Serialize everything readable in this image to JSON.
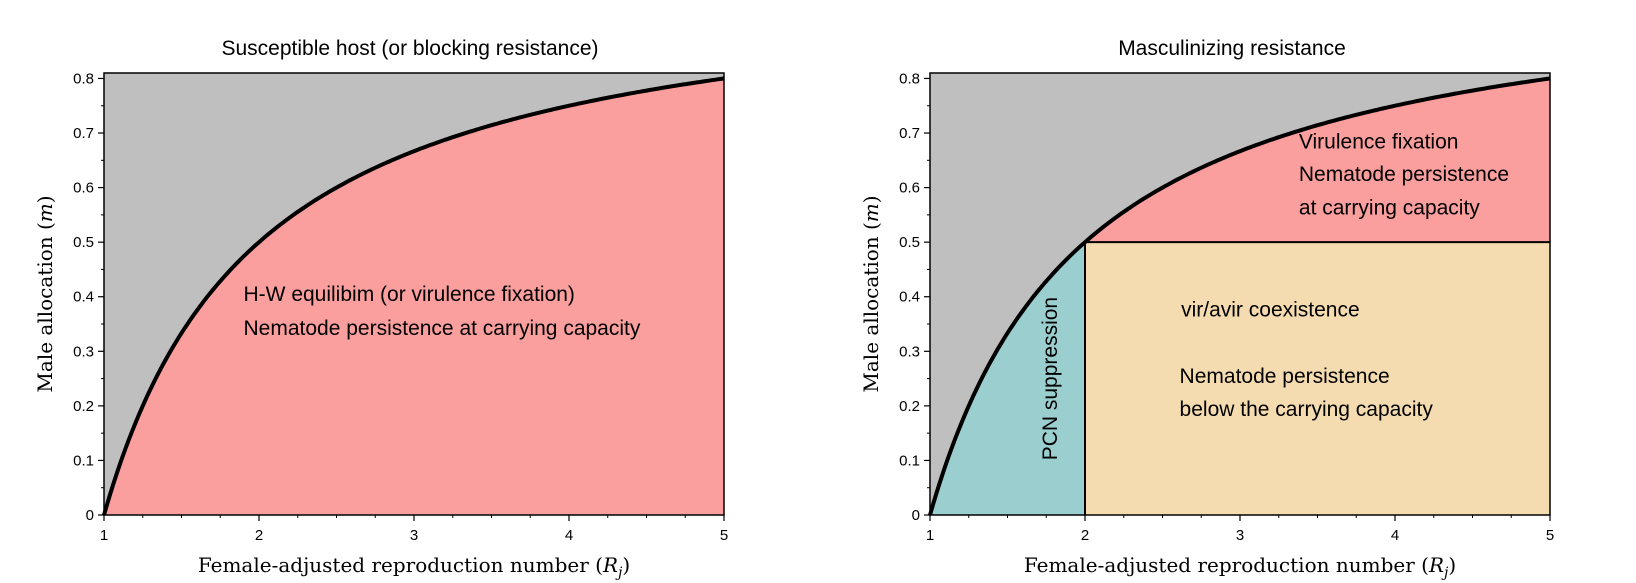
{
  "chart_data": [
    {
      "type": "area",
      "title": "Susceptible host (or blocking resistance)",
      "xlabel_text": "Female-adjusted reproduction number (",
      "xlabel_sym": "R",
      "xlabel_sub": "j",
      "xlabel_close": ")",
      "ylabel_text": "Male allocation (",
      "ylabel_sym": "m",
      "ylabel_close": ")",
      "xlim": [
        1,
        5
      ],
      "ylim": [
        0,
        0.81
      ],
      "xticks": [
        1,
        2,
        3,
        4,
        5
      ],
      "yticks": [
        0,
        0.1,
        0.2,
        0.3,
        0.4,
        0.5,
        0.6,
        0.7,
        0.8
      ],
      "ytick_labels": [
        "0",
        "0.1",
        "0.2",
        "0.3",
        "0.4",
        "0.5",
        "0.6",
        "0.7",
        "0.8"
      ],
      "boundary_curve": {
        "x": [
          1,
          1.25,
          1.5,
          1.75,
          2,
          2.5,
          3,
          3.5,
          4,
          4.5,
          5
        ],
        "y": [
          0,
          0.2,
          0.333,
          0.429,
          0.5,
          0.6,
          0.667,
          0.714,
          0.75,
          0.778,
          0.8
        ]
      },
      "regions": [
        {
          "name": "above-curve",
          "color": "#bfbfbf"
        },
        {
          "name": "below-curve",
          "color": "#fa9e9e"
        }
      ],
      "annotations": [
        {
          "lines": [
            "H-W equilibim (or virulence fixation)",
            "Nematode persistence at carrying capacity"
          ],
          "x": 1.9,
          "y": [
            0.392,
            0.33
          ]
        }
      ],
      "grid": false
    },
    {
      "type": "area",
      "title": "Masculinizing resistance",
      "xlabel_text": "Female-adjusted reproduction number (",
      "xlabel_sym": "R",
      "xlabel_sub": "j",
      "xlabel_close": ")",
      "ylabel_text": "Male allocation (",
      "ylabel_sym": "m",
      "ylabel_close": ")",
      "xlim": [
        1,
        5
      ],
      "ylim": [
        0,
        0.81
      ],
      "xticks": [
        1,
        2,
        3,
        4,
        5
      ],
      "yticks": [
        0,
        0.1,
        0.2,
        0.3,
        0.4,
        0.5,
        0.6,
        0.7,
        0.8
      ],
      "ytick_labels": [
        "0",
        "0.1",
        "0.2",
        "0.3",
        "0.4",
        "0.5",
        "0.6",
        "0.7",
        "0.8"
      ],
      "boundary_curve": {
        "x": [
          1,
          1.25,
          1.5,
          1.75,
          2,
          2.5,
          3,
          3.5,
          4,
          4.5,
          5
        ],
        "y": [
          0,
          0.2,
          0.333,
          0.429,
          0.5,
          0.6,
          0.667,
          0.714,
          0.75,
          0.778,
          0.8
        ]
      },
      "threshold_x": 2,
      "threshold_y": 0.5,
      "regions": [
        {
          "name": "above-curve",
          "color": "#bfbfbf"
        },
        {
          "name": "virulence-fixation",
          "color": "#fa9e9e"
        },
        {
          "name": "coexistence",
          "color": "#f5dcb0"
        },
        {
          "name": "pcn-suppression",
          "color": "#9bcfcf"
        }
      ],
      "annotations": [
        {
          "lines": [
            "Virulence fixation",
            "Nematode persistence",
            "at carrying capacity"
          ],
          "x": 3.38,
          "y": [
            0.672,
            0.612,
            0.551
          ]
        },
        {
          "lines": [
            "vir/avir coexistence"
          ],
          "x": 2.62,
          "y": [
            0.364
          ]
        },
        {
          "lines": [
            "Nematode persistence",
            "below the carrying capacity"
          ],
          "x": 2.61,
          "y": [
            0.242,
            0.181
          ]
        },
        {
          "lines": [
            "PCN suppression"
          ],
          "x": 1.82,
          "y": [
            0.25
          ],
          "rotate": -90
        }
      ],
      "grid": false
    }
  ]
}
